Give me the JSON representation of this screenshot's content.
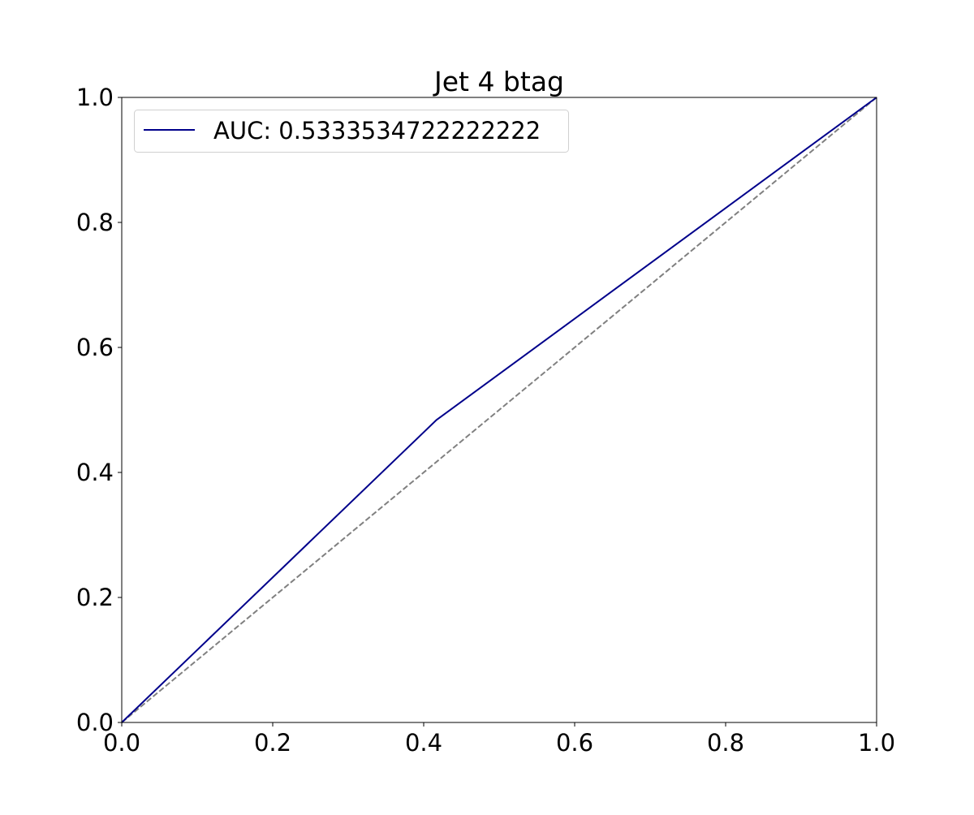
{
  "chart_data": {
    "type": "line",
    "title": "Jet 4 btag",
    "xlabel": "",
    "ylabel": "",
    "xlim": [
      0.0,
      1.0
    ],
    "ylim": [
      0.0,
      1.0
    ],
    "xticks": [
      "0.0",
      "0.2",
      "0.4",
      "0.6",
      "0.8",
      "1.0"
    ],
    "yticks": [
      "0.0",
      "0.2",
      "0.4",
      "0.6",
      "0.8",
      "1.0"
    ],
    "grid": false,
    "legend_position": "top-left",
    "series": [
      {
        "name": "AUC: 0.5333534722222222",
        "color": "#00008b",
        "style": "solid",
        "x": [
          0.0,
          0.417,
          1.0
        ],
        "y": [
          0.0,
          0.484,
          1.0
        ]
      },
      {
        "color": "#808080",
        "style": "dashed",
        "x": [
          0.0,
          1.0
        ],
        "y": [
          0.0,
          1.0
        ]
      }
    ]
  }
}
